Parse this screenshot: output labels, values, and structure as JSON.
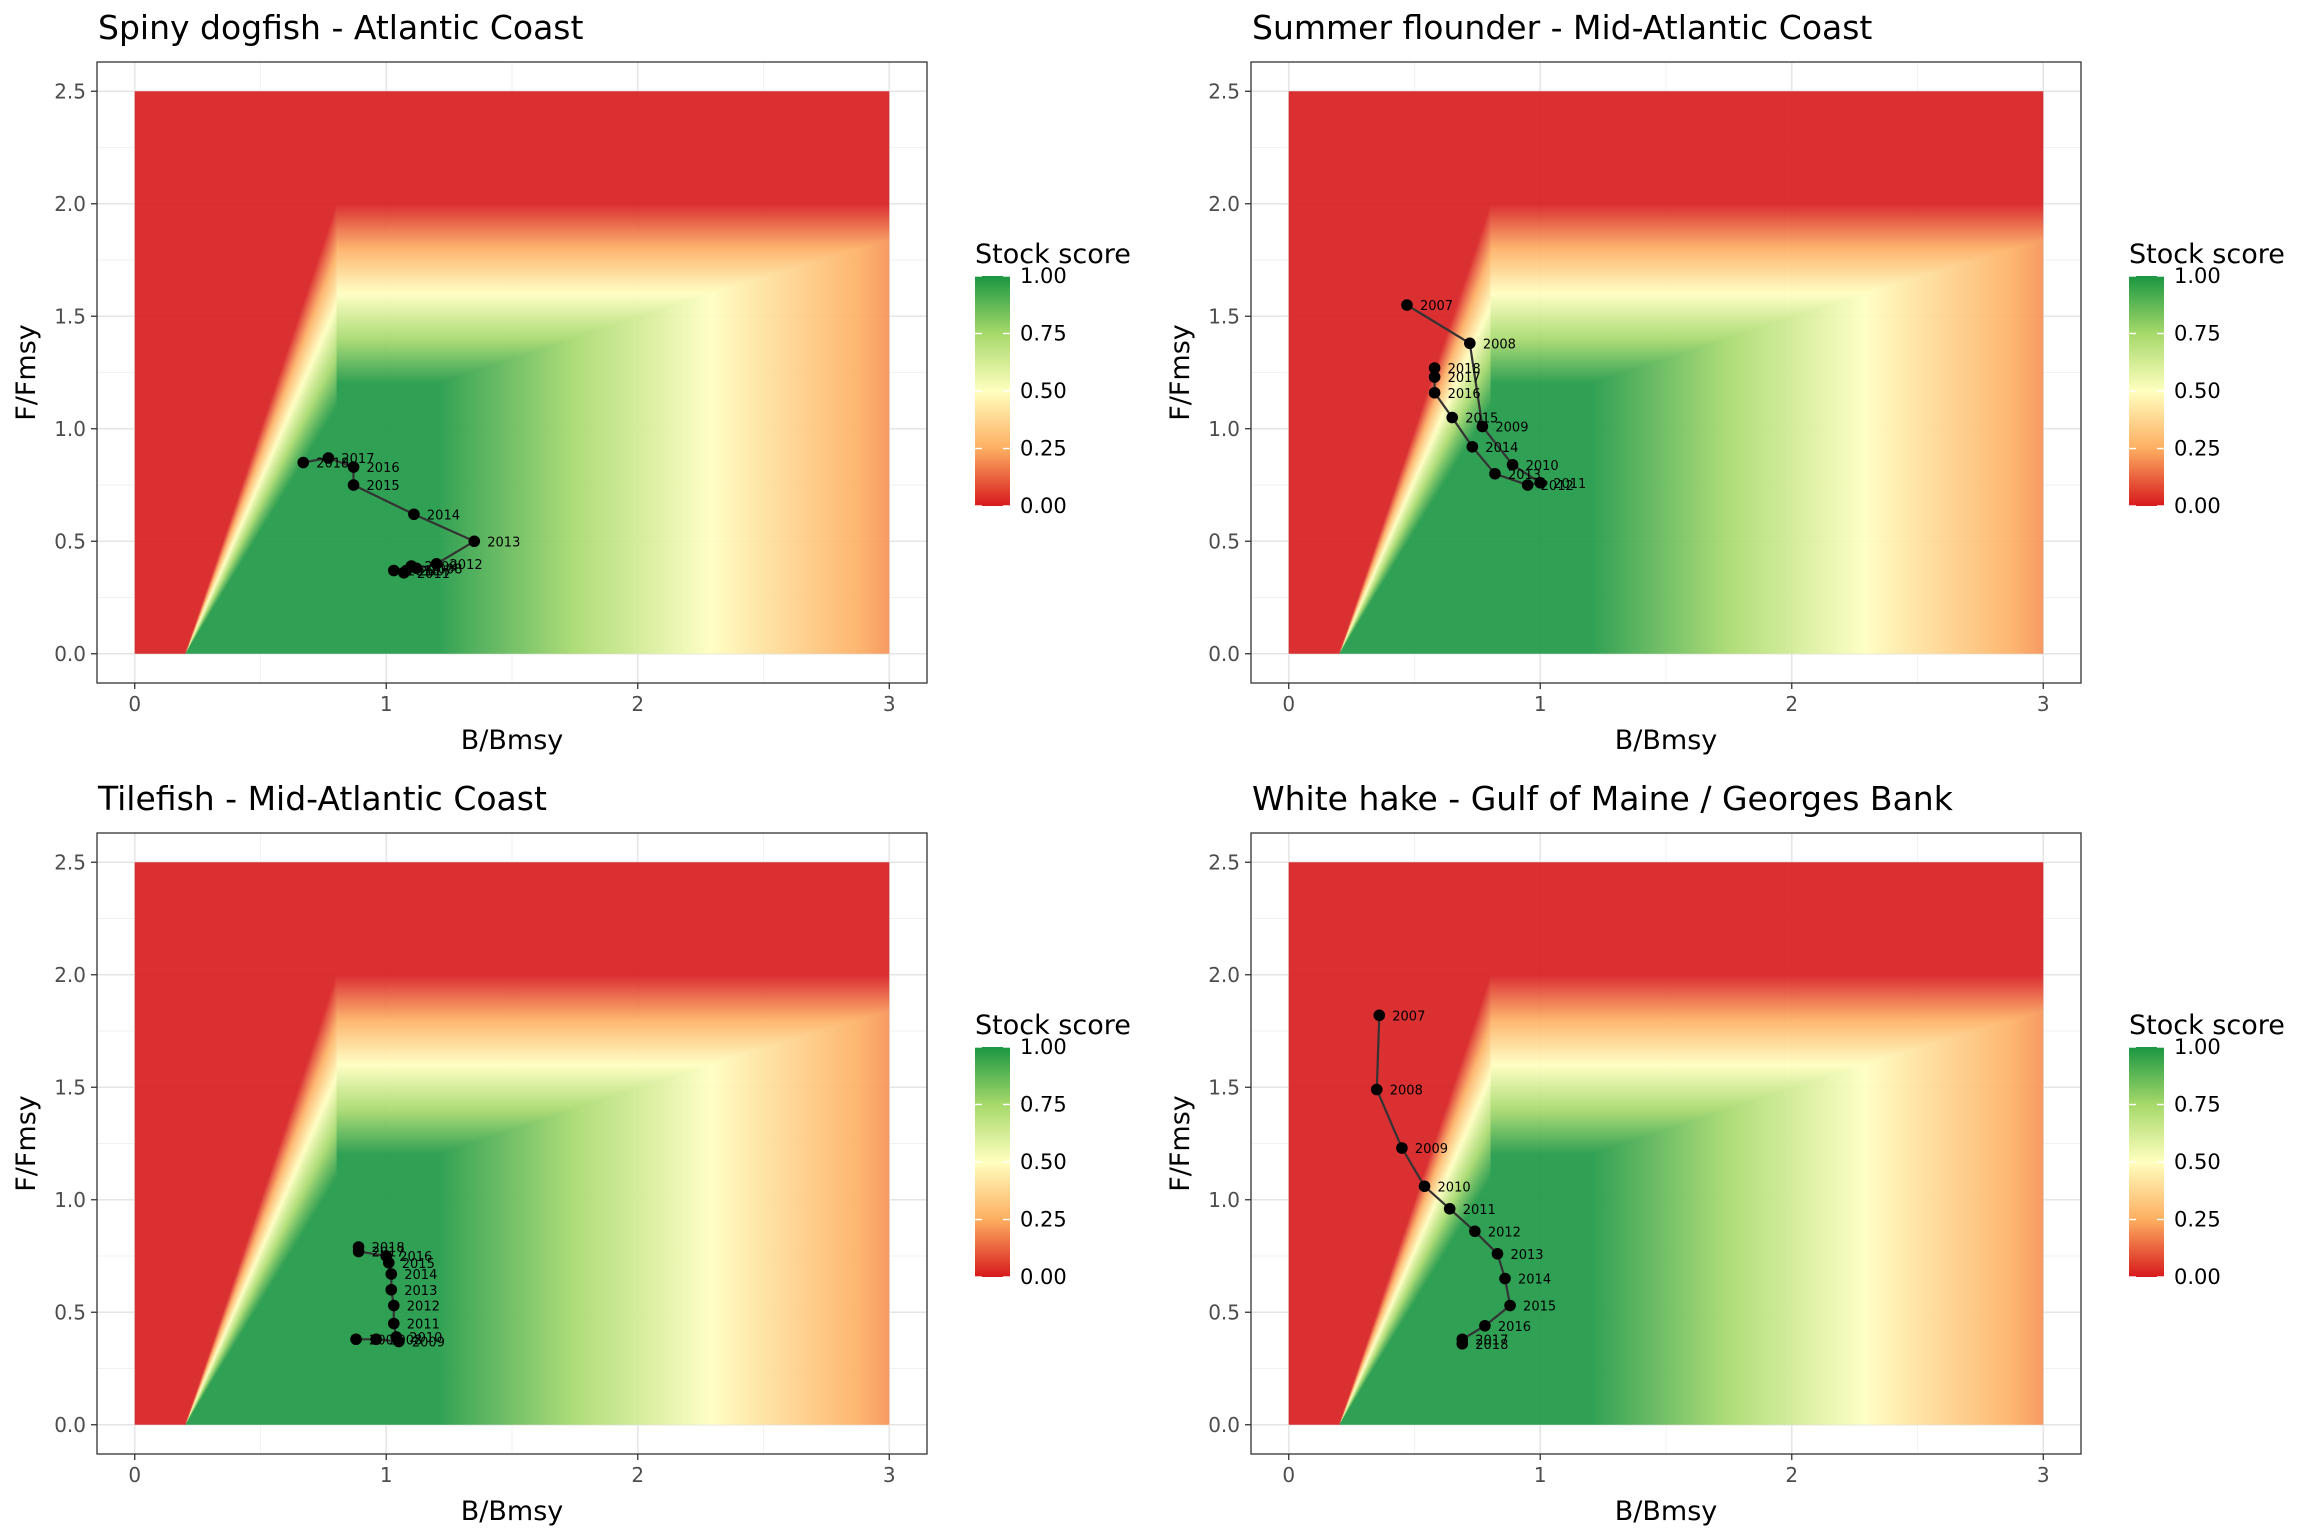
{
  "chart_data": [
    {
      "type": "scatter",
      "title": "Spiny dogfish - Atlantic Coast",
      "xlabel": "B/Bmsy",
      "ylabel": "F/Fmsy",
      "xlim": [
        -0.15,
        3.15
      ],
      "ylim": [
        -0.13,
        2.63
      ],
      "x_ticks": [
        "0",
        "1",
        "2",
        "3"
      ],
      "y_ticks": [
        "0.0",
        "0.5",
        "1.0",
        "1.5",
        "2.0",
        "2.5"
      ],
      "grid": true,
      "legend": {
        "title": "Stock score",
        "labels": [
          "1.00",
          "0.75",
          "0.50",
          "0.25",
          "0.00"
        ],
        "position": "right"
      },
      "points": [
        {
          "year": "2007",
          "x": 1.08,
          "y": 0.37
        },
        {
          "year": "2008",
          "x": 1.12,
          "y": 0.38
        },
        {
          "year": "2009",
          "x": 1.1,
          "y": 0.39
        },
        {
          "year": "2010",
          "x": 1.03,
          "y": 0.37
        },
        {
          "year": "2011",
          "x": 1.07,
          "y": 0.36
        },
        {
          "year": "2012",
          "x": 1.2,
          "y": 0.4
        },
        {
          "year": "2013",
          "x": 1.35,
          "y": 0.5
        },
        {
          "year": "2014",
          "x": 1.11,
          "y": 0.62
        },
        {
          "year": "2015",
          "x": 0.87,
          "y": 0.75
        },
        {
          "year": "2016",
          "x": 0.87,
          "y": 0.83
        },
        {
          "year": "2017",
          "x": 0.77,
          "y": 0.87
        },
        {
          "year": "2018",
          "x": 0.67,
          "y": 0.85
        }
      ]
    },
    {
      "type": "scatter",
      "title": "Summer flounder - Mid-Atlantic Coast",
      "xlabel": "B/Bmsy",
      "ylabel": "F/Fmsy",
      "xlim": [
        -0.15,
        3.15
      ],
      "ylim": [
        -0.13,
        2.63
      ],
      "x_ticks": [
        "0",
        "1",
        "2",
        "3"
      ],
      "y_ticks": [
        "0.0",
        "0.5",
        "1.0",
        "1.5",
        "2.0",
        "2.5"
      ],
      "grid": true,
      "legend": {
        "title": "Stock score",
        "labels": [
          "1.00",
          "0.75",
          "0.50",
          "0.25",
          "0.00"
        ],
        "position": "right"
      },
      "points": [
        {
          "year": "2007",
          "x": 0.47,
          "y": 1.55
        },
        {
          "year": "2008",
          "x": 0.72,
          "y": 1.38
        },
        {
          "year": "2009",
          "x": 0.77,
          "y": 1.01
        },
        {
          "year": "2010",
          "x": 0.89,
          "y": 0.84
        },
        {
          "year": "2011",
          "x": 1.0,
          "y": 0.76
        },
        {
          "year": "2012",
          "x": 0.95,
          "y": 0.75
        },
        {
          "year": "2013",
          "x": 0.82,
          "y": 0.8
        },
        {
          "year": "2014",
          "x": 0.73,
          "y": 0.92
        },
        {
          "year": "2015",
          "x": 0.65,
          "y": 1.05
        },
        {
          "year": "2016",
          "x": 0.58,
          "y": 1.16
        },
        {
          "year": "2017",
          "x": 0.58,
          "y": 1.23
        },
        {
          "year": "2018",
          "x": 0.58,
          "y": 1.27
        }
      ]
    },
    {
      "type": "scatter",
      "title": "Tilefish - Mid-Atlantic Coast",
      "xlabel": "B/Bmsy",
      "ylabel": "F/Fmsy",
      "xlim": [
        -0.15,
        3.15
      ],
      "ylim": [
        -0.13,
        2.63
      ],
      "x_ticks": [
        "0",
        "1",
        "2",
        "3"
      ],
      "y_ticks": [
        "0.0",
        "0.5",
        "1.0",
        "1.5",
        "2.0",
        "2.5"
      ],
      "grid": true,
      "legend": {
        "title": "Stock score",
        "labels": [
          "1.00",
          "0.75",
          "0.50",
          "0.25",
          "0.00"
        ],
        "position": "right"
      },
      "points": [
        {
          "year": "2007",
          "x": 0.88,
          "y": 0.38
        },
        {
          "year": "2008",
          "x": 0.96,
          "y": 0.38
        },
        {
          "year": "2009",
          "x": 1.05,
          "y": 0.37
        },
        {
          "year": "2010",
          "x": 1.04,
          "y": 0.39
        },
        {
          "year": "2011",
          "x": 1.03,
          "y": 0.45
        },
        {
          "year": "2012",
          "x": 1.03,
          "y": 0.53
        },
        {
          "year": "2013",
          "x": 1.02,
          "y": 0.6
        },
        {
          "year": "2014",
          "x": 1.02,
          "y": 0.67
        },
        {
          "year": "2015",
          "x": 1.01,
          "y": 0.72
        },
        {
          "year": "2016",
          "x": 1.0,
          "y": 0.75
        },
        {
          "year": "2017",
          "x": 0.89,
          "y": 0.77
        },
        {
          "year": "2018",
          "x": 0.89,
          "y": 0.79
        }
      ]
    },
    {
      "type": "scatter",
      "title": "White hake - Gulf of Maine / Georges Bank",
      "xlabel": "B/Bmsy",
      "ylabel": "F/Fmsy",
      "xlim": [
        -0.15,
        3.15
      ],
      "ylim": [
        -0.13,
        2.63
      ],
      "x_ticks": [
        "0",
        "1",
        "2",
        "3"
      ],
      "y_ticks": [
        "0.0",
        "0.5",
        "1.0",
        "1.5",
        "2.0",
        "2.5"
      ],
      "grid": true,
      "legend": {
        "title": "Stock score",
        "labels": [
          "1.00",
          "0.75",
          "0.50",
          "0.25",
          "0.00"
        ],
        "position": "right"
      },
      "points": [
        {
          "year": "2007",
          "x": 0.36,
          "y": 1.82
        },
        {
          "year": "2008",
          "x": 0.35,
          "y": 1.49
        },
        {
          "year": "2009",
          "x": 0.45,
          "y": 1.23
        },
        {
          "year": "2010",
          "x": 0.54,
          "y": 1.06
        },
        {
          "year": "2011",
          "x": 0.64,
          "y": 0.96
        },
        {
          "year": "2012",
          "x": 0.74,
          "y": 0.86
        },
        {
          "year": "2013",
          "x": 0.83,
          "y": 0.76
        },
        {
          "year": "2014",
          "x": 0.86,
          "y": 0.65
        },
        {
          "year": "2015",
          "x": 0.88,
          "y": 0.53
        },
        {
          "year": "2016",
          "x": 0.78,
          "y": 0.44
        },
        {
          "year": "2017",
          "x": 0.69,
          "y": 0.38
        },
        {
          "year": "2018",
          "x": 0.69,
          "y": 0.36
        }
      ]
    }
  ]
}
